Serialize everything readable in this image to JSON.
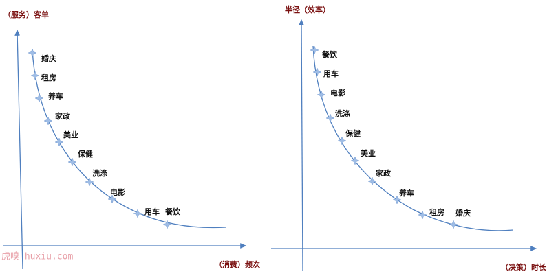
{
  "left": {
    "y_label": "（服务）客单",
    "x_label": "（消费）频次",
    "points": [
      "婚庆",
      "租房",
      "养车",
      "家政",
      "美业",
      "保健",
      "洗涤",
      "电影",
      "用车",
      "餐饮"
    ]
  },
  "right": {
    "y_label": "半径（效率）",
    "x_label": "（决策）时长",
    "points": [
      "餐饮",
      "用车",
      "电影",
      "洗涤",
      "保健",
      "美业",
      "家政",
      "养车",
      "租房",
      "婚庆"
    ]
  },
  "watermark": "虎嗅 huxiu.com"
}
